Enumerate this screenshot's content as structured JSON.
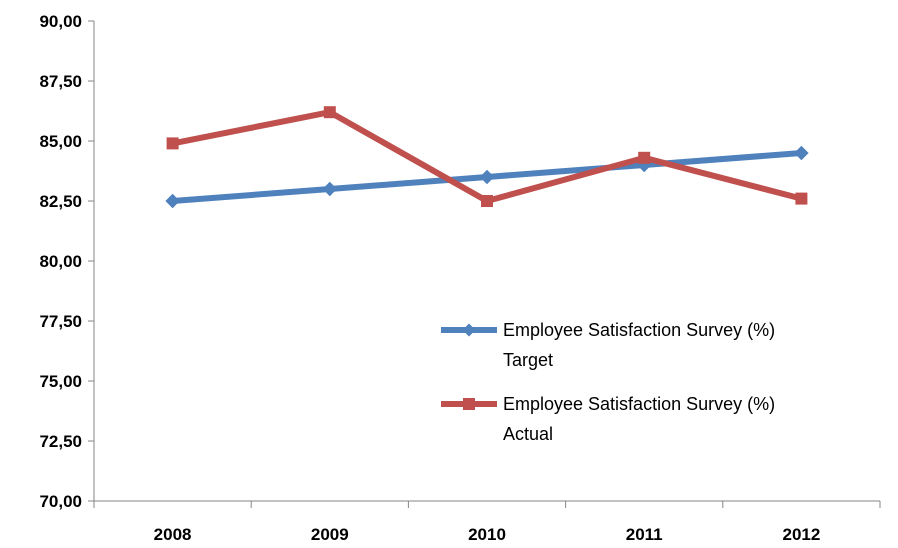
{
  "chart_data": {
    "type": "line",
    "categories": [
      "2008",
      "2009",
      "2010",
      "2011",
      "2012"
    ],
    "ylim": [
      70,
      90
    ],
    "yticks": [
      "70,00",
      "72,50",
      "75,00",
      "77,50",
      "80,00",
      "82,50",
      "85,00",
      "87,50",
      "90,00"
    ],
    "ytick_values": [
      70,
      72.5,
      75,
      77.5,
      80,
      82.5,
      85,
      87.5,
      90
    ],
    "grid": false,
    "legend_position": "right",
    "series": [
      {
        "name_lines": [
          "Employee Satisfaction Survey (%)",
          "Target"
        ],
        "values": [
          82.5,
          83.0,
          83.5,
          84.0,
          84.5
        ],
        "color": "#4F81BD",
        "marker": "diamond"
      },
      {
        "name_lines": [
          "Employee Satisfaction Survey (%)",
          "Actual"
        ],
        "values": [
          84.9,
          86.2,
          82.5,
          84.3,
          82.6
        ],
        "color": "#C0504D",
        "marker": "square"
      }
    ]
  }
}
